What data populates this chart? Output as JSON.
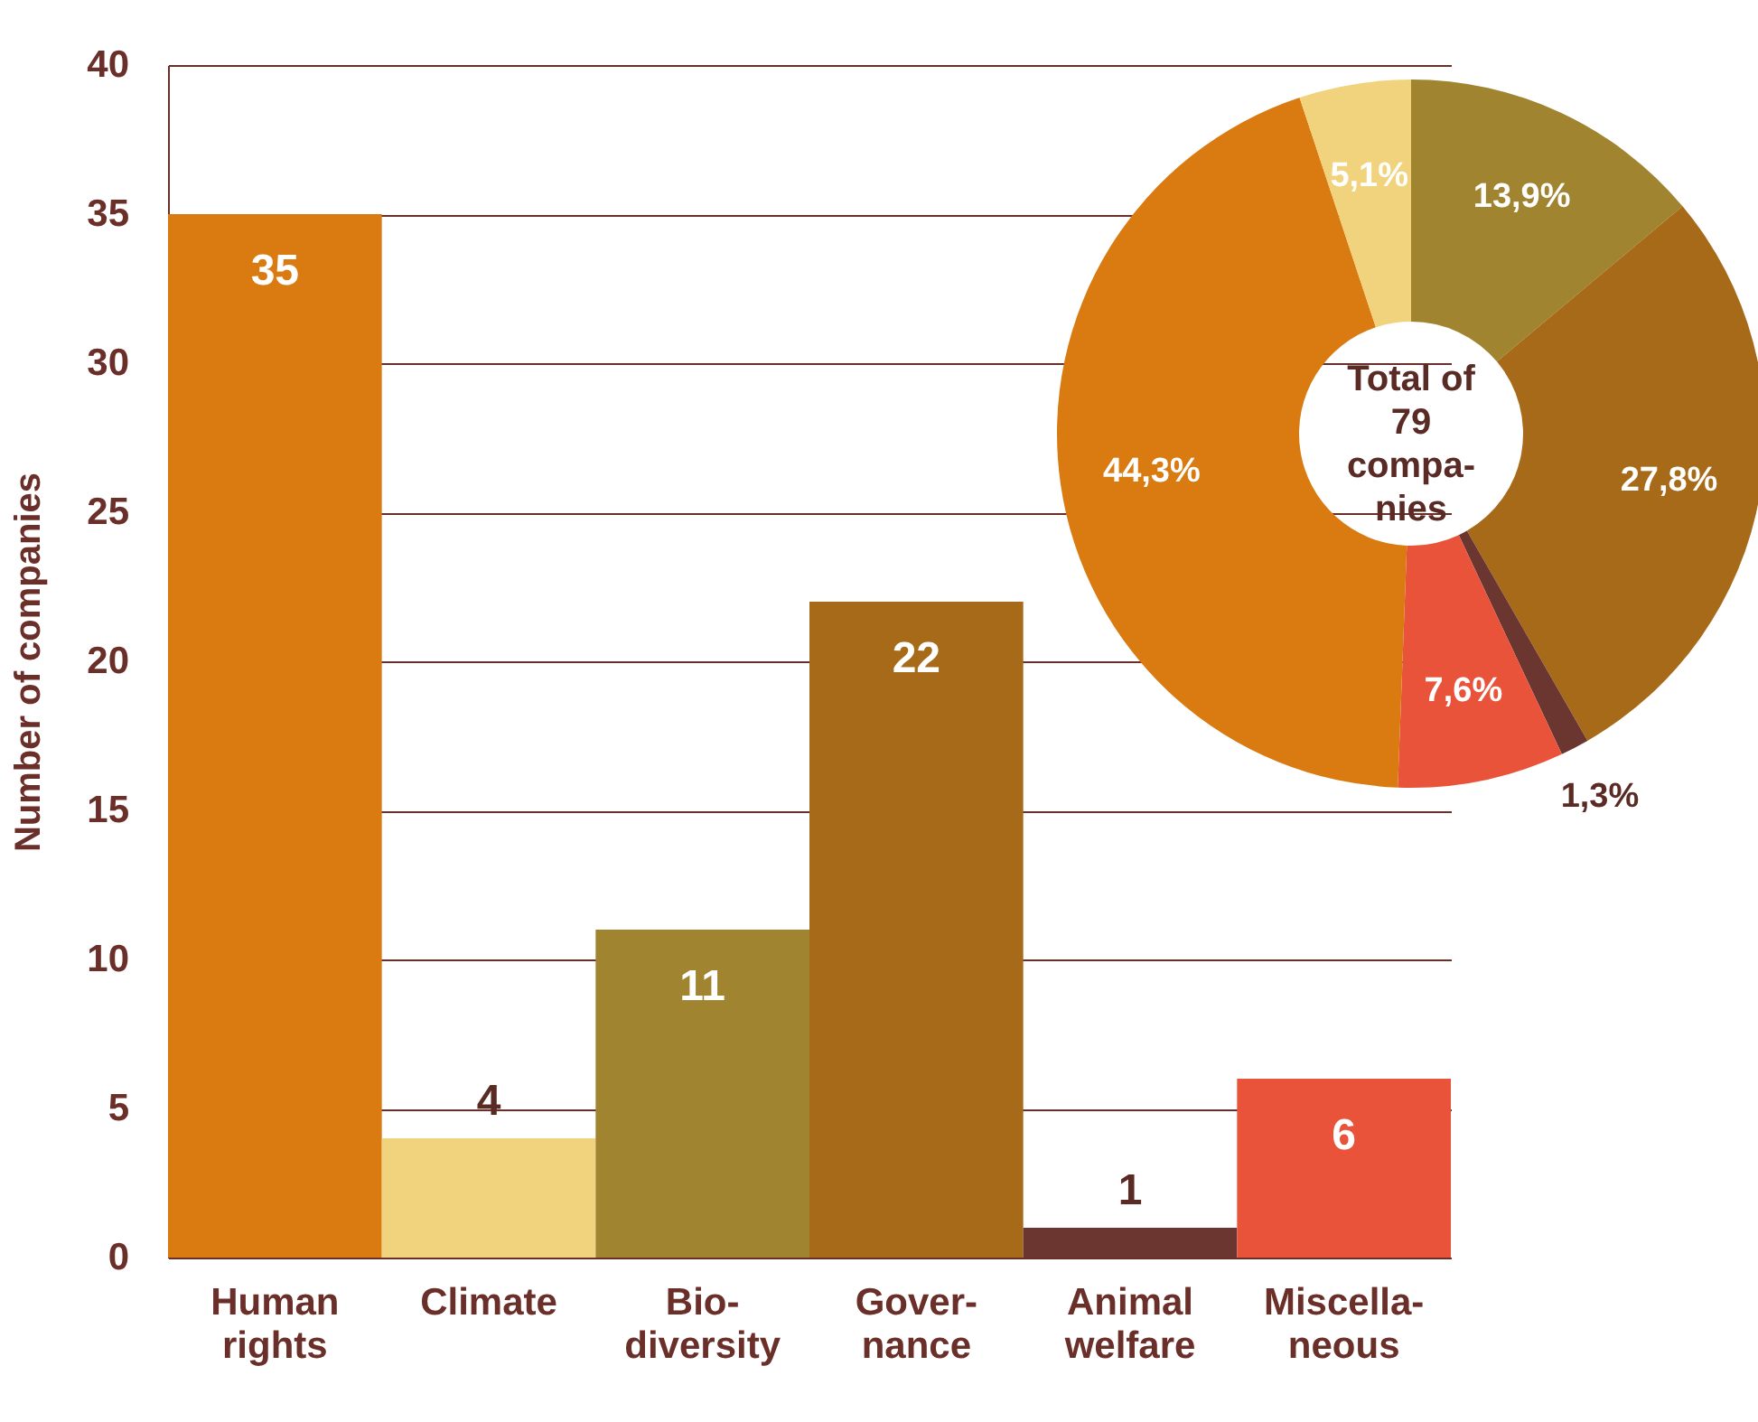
{
  "chart_data": [
    {
      "type": "bar",
      "ylabel": "Number of companies",
      "categories": [
        "Human\nrights",
        "Climate",
        "Bio-\ndiversity",
        "Gover-\nnance",
        "Animal\nwelfare",
        "Miscella-\nneous"
      ],
      "values": [
        35,
        4,
        11,
        22,
        1,
        6
      ],
      "colors": [
        "#d97b10",
        "#f2d37d",
        "#a08430",
        "#a66a18",
        "#6b3530",
        "#e8533a"
      ],
      "ylim": [
        0,
        40
      ],
      "yticks": [
        0,
        5,
        10,
        15,
        20,
        25,
        30,
        35,
        40
      ],
      "grid": "y",
      "data_labels": true
    },
    {
      "type": "donut",
      "categories": [
        null,
        null,
        null,
        null,
        null,
        null
      ],
      "values": [
        13.9,
        27.8,
        1.3,
        7.6,
        44.3,
        5.1
      ],
      "colors": [
        "#a08430",
        "#a66a18",
        "#6b3530",
        "#e8533a",
        "#d97b10",
        "#f2d37d"
      ],
      "value_labels": [
        "13,9%",
        "27,8%",
        "1,3%",
        "7,6%",
        "44,3%",
        "5,1%"
      ],
      "annotations": [
        "Total of\n79\ncompa-\nnies"
      ]
    }
  ]
}
